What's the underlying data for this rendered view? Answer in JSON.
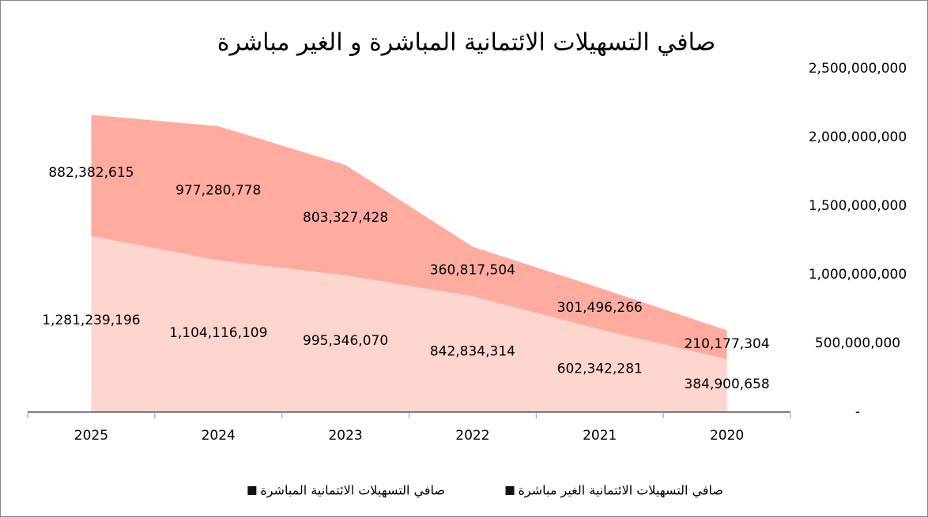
{
  "chart_data": {
    "type": "stacked_area",
    "title": "صافي التسهيلات الائتمانية المباشرة و الغير مباشرة",
    "categories": [
      "2025",
      "2024",
      "2023",
      "2022",
      "2021",
      "2020"
    ],
    "series": [
      {
        "name": "صافي التسهيلات الائتمانية المباشرة",
        "color": "#ffd5d0",
        "values": [
          1281239196,
          1104116109,
          995346070,
          842834314,
          602342281,
          384900658
        ],
        "value_labels": [
          "1,281,239,196",
          "1,104,116,109",
          "995,346,070",
          "842,834,314",
          "602,342,281",
          "384,900,658"
        ]
      },
      {
        "name": "صافي التسهيلات الائتمانية الغير مباشرة",
        "color": "#ffaba0",
        "values": [
          882382615,
          977280778,
          803327428,
          360817504,
          301496266,
          210177304
        ],
        "value_labels": [
          "882,382,615",
          "977,280,778",
          "803,327,428",
          "360,817,504",
          "301,496,266",
          "210,177,304"
        ]
      }
    ],
    "ylim": [
      0,
      2500000000
    ],
    "yticks": [
      {
        "value": 0,
        "label": "-"
      },
      {
        "value": 500000000,
        "label": "500,000,000"
      },
      {
        "value": 1000000000,
        "label": "1,000,000,000"
      },
      {
        "value": 1500000000,
        "label": "1,500,000,000"
      },
      {
        "value": 2000000000,
        "label": "2,000,000,000"
      },
      {
        "value": 2500000000,
        "label": "2,500,000,000"
      }
    ],
    "legend": "bottom"
  }
}
